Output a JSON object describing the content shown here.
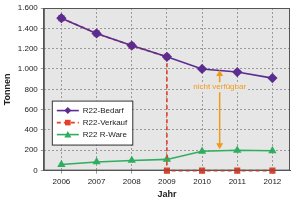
{
  "chart_data": {
    "type": "line",
    "x_label": "Jahr",
    "y_label": "Tonnen",
    "x": [
      2006,
      2007,
      2008,
      2009,
      2010,
      2011,
      2012
    ],
    "xlim": [
      2005.5,
      2012.5
    ],
    "xticks": [
      2006,
      2007,
      2008,
      2009,
      2010,
      2011,
      2012
    ],
    "ylim": [
      0,
      1600
    ],
    "yticks": [
      0,
      200,
      400,
      600,
      800,
      {
        "value": 1000,
        "label": "1.000"
      },
      {
        "value": 1200,
        "label": "1.200"
      },
      {
        "value": 1400,
        "label": "1.400"
      },
      {
        "value": 1600,
        "label": "1.600"
      }
    ],
    "grid": true,
    "legend": "lower left",
    "series": [
      {
        "name": "R22-Bedarf",
        "color": "#5b2d91",
        "marker": "diamond",
        "line_style": "solid",
        "values": [
          1500,
          1350,
          1230,
          1120,
          1000,
          970,
          910
        ]
      },
      {
        "name": "R22-Verkauf",
        "color": "#e2402a",
        "marker": "square",
        "line_style": "dashed",
        "x": [
          2006,
          2007,
          2008,
          2009,
          2009,
          2010,
          2011,
          2012
        ],
        "values": [
          1500,
          1350,
          1230,
          1120,
          0,
          0,
          0,
          0
        ]
      },
      {
        "name": "R22 R-Ware",
        "color": "#2fae5f",
        "marker": "triangle",
        "line_style": "solid",
        "values": [
          60,
          85,
          100,
          110,
          190,
          200,
          195
        ]
      }
    ],
    "annotations": [
      {
        "text": "nicht verfügbar",
        "x": 2010.5,
        "y": 820,
        "arrow_from": 990,
        "arrow_to": 210,
        "color": "#f09a1a"
      }
    ]
  }
}
